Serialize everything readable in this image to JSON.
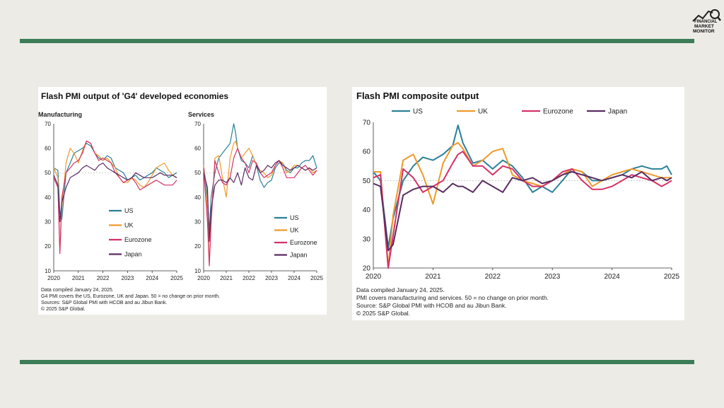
{
  "colors": {
    "US": "#2a8098",
    "UK": "#ef9a2a",
    "Eurozone": "#d63167",
    "Japan": "#5a2c62",
    "rule": "#3c7d58",
    "background": "#ecebe6"
  },
  "logo": {
    "icon": "chart-with-magnifier-icon",
    "text": "FINANCIAL MARKET MONITOR"
  },
  "panel1": {
    "title": "Flash PMI output of 'G4' developed economies",
    "notes": [
      "Data compiled January 24, 2025.",
      "G4 PMI covers the US, Eurozone, UK and Japan. 50 = no change on prior month.",
      "Sources: S&P Global PMI with HCOB and au Jibun Bank.",
      "© 2025 S&P Global."
    ]
  },
  "panel2": {
    "title": "Flash PMI composite output",
    "notes": [
      "Data compiled January 24, 2025.",
      "PMI covers manufacturing and services. 50 = no change on prior month.",
      "Source: S&P Global PMI with HCOB and au Jibun Bank.",
      "© 2025 S&P Global."
    ]
  },
  "chart_data": [
    {
      "type": "line",
      "title": "Manufacturing",
      "ylim": [
        10,
        70
      ],
      "yticks": [
        10,
        20,
        30,
        40,
        50,
        60,
        70
      ],
      "xlim": [
        2020,
        2025
      ],
      "xticks": [
        "2020",
        "2021",
        "2022",
        "2023",
        "2024",
        "2025"
      ],
      "legend_position": "bottom-center",
      "series": [
        {
          "name": "US",
          "x": [
            2020.0,
            2020.17,
            2020.25,
            2020.33,
            2020.5,
            2020.67,
            2020.83,
            2021.0,
            2021.17,
            2021.33,
            2021.5,
            2021.67,
            2021.83,
            2022.0,
            2022.17,
            2022.33,
            2022.5,
            2022.67,
            2022.83,
            2023.0,
            2023.17,
            2023.33,
            2023.5,
            2023.67,
            2023.83,
            2024.0,
            2024.17,
            2024.33,
            2024.5,
            2024.67,
            2024.83,
            2025.0
          ],
          "y": [
            52,
            51,
            34,
            31,
            50,
            54,
            58,
            59,
            60,
            62,
            61,
            58,
            56,
            55,
            57,
            56,
            52,
            51,
            50,
            47,
            48,
            49,
            47,
            48,
            49,
            50,
            52,
            51,
            50,
            48,
            49,
            50
          ]
        },
        {
          "name": "UK",
          "x": [
            2020.0,
            2020.17,
            2020.25,
            2020.33,
            2020.5,
            2020.67,
            2020.83,
            2021.0,
            2021.17,
            2021.33,
            2021.5,
            2021.67,
            2021.83,
            2022.0,
            2022.17,
            2022.33,
            2022.5,
            2022.67,
            2022.83,
            2023.0,
            2023.17,
            2023.33,
            2023.5,
            2023.67,
            2023.83,
            2024.0,
            2024.17,
            2024.33,
            2024.5,
            2024.67,
            2024.83,
            2025.0
          ],
          "y": [
            52,
            48,
            18,
            36,
            54,
            60,
            58,
            54,
            59,
            63,
            62,
            58,
            57,
            55,
            56,
            54,
            52,
            48,
            46,
            46,
            48,
            47,
            45,
            44,
            46,
            49,
            52,
            53,
            54,
            51,
            49,
            48
          ]
        },
        {
          "name": "Eurozone",
          "x": [
            2020.0,
            2020.17,
            2020.25,
            2020.33,
            2020.5,
            2020.67,
            2020.83,
            2021.0,
            2021.17,
            2021.33,
            2021.5,
            2021.67,
            2021.83,
            2022.0,
            2022.17,
            2022.33,
            2022.5,
            2022.67,
            2022.83,
            2023.0,
            2023.17,
            2023.33,
            2023.5,
            2023.67,
            2023.83,
            2024.0,
            2024.17,
            2024.33,
            2024.5,
            2024.67,
            2024.83,
            2025.0
          ],
          "y": [
            48,
            44,
            17,
            40,
            50,
            52,
            54,
            55,
            58,
            63,
            62,
            58,
            55,
            56,
            55,
            54,
            50,
            48,
            46,
            47,
            48,
            46,
            43,
            44,
            45,
            46,
            47,
            46,
            45,
            45,
            45,
            47
          ]
        },
        {
          "name": "Japan",
          "x": [
            2020.0,
            2020.17,
            2020.25,
            2020.33,
            2020.5,
            2020.67,
            2020.83,
            2021.0,
            2021.17,
            2021.33,
            2021.5,
            2021.67,
            2021.83,
            2022.0,
            2022.17,
            2022.33,
            2022.5,
            2022.67,
            2022.83,
            2023.0,
            2023.17,
            2023.33,
            2023.5,
            2023.67,
            2023.83,
            2024.0,
            2024.17,
            2024.33,
            2024.5,
            2024.67,
            2024.83,
            2025.0
          ],
          "y": [
            49,
            45,
            30,
            38,
            44,
            48,
            49,
            50,
            52,
            53,
            52,
            51,
            53,
            54,
            52,
            51,
            50,
            49,
            48,
            47,
            48,
            50,
            49,
            48,
            48,
            48,
            49,
            50,
            49,
            49,
            49,
            48
          ]
        }
      ]
    },
    {
      "type": "line",
      "title": "Services",
      "ylim": [
        10,
        70
      ],
      "yticks": [
        10,
        20,
        30,
        40,
        50,
        60,
        70
      ],
      "xlim": [
        2020,
        2025
      ],
      "xticks": [
        "2020",
        "2021",
        "2022",
        "2023",
        "2024",
        "2025"
      ],
      "legend_position": "bottom-right",
      "series": [
        {
          "name": "US",
          "x": [
            2020.0,
            2020.17,
            2020.25,
            2020.33,
            2020.5,
            2020.67,
            2020.83,
            2021.0,
            2021.17,
            2021.33,
            2021.42,
            2021.5,
            2021.67,
            2021.83,
            2022.0,
            2022.17,
            2022.33,
            2022.5,
            2022.67,
            2022.83,
            2023.0,
            2023.17,
            2023.33,
            2023.5,
            2023.67,
            2023.83,
            2024.0,
            2024.17,
            2024.33,
            2024.5,
            2024.67,
            2024.83,
            2025.0
          ],
          "y": [
            53,
            40,
            26,
            40,
            50,
            56,
            58,
            60,
            62,
            70,
            66,
            60,
            55,
            54,
            52,
            57,
            53,
            47,
            44,
            46,
            47,
            52,
            54,
            54,
            51,
            50,
            52,
            52,
            54,
            55,
            55,
            57,
            52
          ]
        },
        {
          "name": "UK",
          "x": [
            2020.0,
            2020.17,
            2020.25,
            2020.33,
            2020.5,
            2020.67,
            2020.83,
            2021.0,
            2021.17,
            2021.33,
            2021.42,
            2021.5,
            2021.67,
            2021.83,
            2022.0,
            2022.17,
            2022.33,
            2022.5,
            2022.67,
            2022.83,
            2023.0,
            2023.17,
            2023.33,
            2023.5,
            2023.67,
            2023.83,
            2024.0,
            2024.17,
            2024.33,
            2024.5,
            2024.67,
            2024.83,
            2025.0
          ],
          "y": [
            53,
            35,
            13,
            30,
            56,
            57,
            48,
            40,
            56,
            62,
            63,
            60,
            56,
            58,
            60,
            57,
            53,
            51,
            50,
            48,
            49,
            53,
            55,
            54,
            50,
            51,
            53,
            53,
            52,
            51,
            52,
            50,
            51
          ]
        },
        {
          "name": "Eurozone",
          "x": [
            2020.0,
            2020.17,
            2020.25,
            2020.33,
            2020.5,
            2020.67,
            2020.83,
            2021.0,
            2021.17,
            2021.33,
            2021.42,
            2021.5,
            2021.67,
            2021.83,
            2022.0,
            2022.17,
            2022.33,
            2022.5,
            2022.67,
            2022.83,
            2023.0,
            2023.17,
            2023.33,
            2023.5,
            2023.67,
            2023.83,
            2024.0,
            2024.17,
            2024.33,
            2024.5,
            2024.67,
            2024.83,
            2025.0
          ],
          "y": [
            52,
            30,
            12,
            30,
            55,
            50,
            46,
            45,
            48,
            56,
            58,
            60,
            56,
            54,
            50,
            55,
            54,
            50,
            48,
            49,
            50,
            53,
            55,
            52,
            48,
            48,
            48,
            50,
            52,
            53,
            51,
            49,
            51
          ]
        },
        {
          "name": "Japan",
          "x": [
            2020.0,
            2020.17,
            2020.25,
            2020.33,
            2020.5,
            2020.67,
            2020.83,
            2021.0,
            2021.17,
            2021.33,
            2021.42,
            2021.5,
            2021.67,
            2021.83,
            2022.0,
            2022.17,
            2022.33,
            2022.5,
            2022.67,
            2022.83,
            2023.0,
            2023.17,
            2023.33,
            2023.5,
            2023.67,
            2023.83,
            2024.0,
            2024.17,
            2024.33,
            2024.5,
            2024.67,
            2024.83,
            2025.0
          ],
          "y": [
            50,
            44,
            22,
            35,
            45,
            47,
            47,
            46,
            48,
            46,
            48,
            50,
            45,
            52,
            48,
            47,
            53,
            50,
            51,
            53,
            52,
            54,
            55,
            53,
            52,
            51,
            52,
            53,
            52,
            51,
            52,
            51,
            52
          ]
        }
      ]
    },
    {
      "type": "line",
      "title": "Flash PMI composite output",
      "ylim": [
        20,
        70
      ],
      "yticks": [
        20,
        30,
        40,
        50,
        60,
        70
      ],
      "xlim": [
        2020,
        2025
      ],
      "xticks": [
        "2020",
        "2021",
        "2022",
        "2023",
        "2024",
        "2025"
      ],
      "legend_position": "top",
      "series": [
        {
          "name": "US",
          "x": [
            2020.0,
            2020.12,
            2020.25,
            2020.33,
            2020.5,
            2020.67,
            2020.83,
            2021.0,
            2021.17,
            2021.33,
            2021.42,
            2021.5,
            2021.67,
            2021.83,
            2022.0,
            2022.17,
            2022.33,
            2022.5,
            2022.67,
            2022.83,
            2023.0,
            2023.17,
            2023.33,
            2023.5,
            2023.67,
            2023.83,
            2024.0,
            2024.17,
            2024.33,
            2024.5,
            2024.67,
            2024.83,
            2024.92,
            2025.0
          ],
          "y": [
            53,
            50,
            27,
            37,
            50,
            55,
            58,
            57,
            59,
            62,
            69,
            63,
            56,
            57,
            54,
            57,
            55,
            51,
            46,
            48,
            46,
            50,
            54,
            53,
            50,
            50,
            51,
            52,
            54,
            55,
            54,
            54,
            55,
            52
          ]
        },
        {
          "name": "UK",
          "x": [
            2020.0,
            2020.12,
            2020.25,
            2020.33,
            2020.5,
            2020.67,
            2020.83,
            2021.0,
            2021.17,
            2021.33,
            2021.42,
            2021.5,
            2021.67,
            2021.83,
            2022.0,
            2022.17,
            2022.33,
            2022.5,
            2022.67,
            2022.83,
            2023.0,
            2023.17,
            2023.33,
            2023.5,
            2023.67,
            2023.83,
            2024.0,
            2024.17,
            2024.33,
            2024.5,
            2024.67,
            2024.83,
            2024.92,
            2025.0
          ],
          "y": [
            53,
            53,
            13,
            38,
            57,
            59,
            52,
            42,
            56,
            62,
            63,
            61,
            55,
            57,
            60,
            61,
            52,
            50,
            49,
            48,
            50,
            52,
            54,
            53,
            48,
            50,
            52,
            53,
            54,
            53,
            52,
            51,
            51,
            51
          ]
        },
        {
          "name": "Eurozone",
          "x": [
            2020.0,
            2020.12,
            2020.25,
            2020.33,
            2020.5,
            2020.67,
            2020.83,
            2021.0,
            2021.17,
            2021.33,
            2021.42,
            2021.5,
            2021.67,
            2021.83,
            2022.0,
            2022.17,
            2022.33,
            2022.5,
            2022.67,
            2022.83,
            2023.0,
            2023.17,
            2023.33,
            2023.5,
            2023.67,
            2023.83,
            2024.0,
            2024.17,
            2024.33,
            2024.5,
            2024.67,
            2024.83,
            2024.92,
            2025.0
          ],
          "y": [
            51,
            52,
            13,
            31,
            54,
            51,
            46,
            48,
            50,
            56,
            59,
            60,
            55,
            55,
            52,
            55,
            54,
            50,
            48,
            48,
            50,
            53,
            54,
            50,
            47,
            47,
            48,
            50,
            52,
            51,
            50,
            48,
            49,
            50
          ]
        },
        {
          "name": "Japan",
          "x": [
            2020.0,
            2020.12,
            2020.25,
            2020.33,
            2020.5,
            2020.67,
            2020.83,
            2021.0,
            2021.17,
            2021.33,
            2021.42,
            2021.5,
            2021.67,
            2021.83,
            2022.0,
            2022.17,
            2022.33,
            2022.5,
            2022.67,
            2022.83,
            2023.0,
            2023.17,
            2023.33,
            2023.5,
            2023.67,
            2023.83,
            2024.0,
            2024.17,
            2024.33,
            2024.5,
            2024.67,
            2024.83,
            2024.92,
            2025.0
          ],
          "y": [
            49,
            48,
            26,
            28,
            45,
            47,
            48,
            48,
            46,
            49,
            48,
            48,
            46,
            50,
            48,
            46,
            51,
            50,
            51,
            49,
            50,
            52,
            53,
            52,
            51,
            50,
            51,
            52,
            51,
            53,
            50,
            51,
            50,
            51
          ]
        }
      ]
    }
  ]
}
